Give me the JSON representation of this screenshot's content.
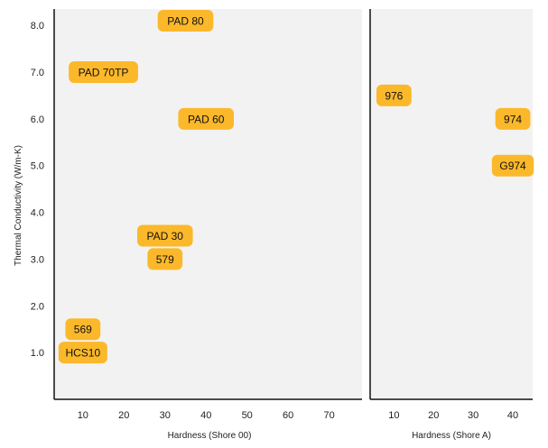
{
  "chart_data": [
    {
      "type": "scatter",
      "title": "",
      "xlabel": "Hardness (Shore 00)",
      "ylabel": "Thermal Conductivity (W/m-K)",
      "xlim": [
        3,
        78
      ],
      "ylim": [
        0,
        8.35
      ],
      "xticks": [
        "10",
        "20",
        "30",
        "40",
        "50",
        "60",
        "70"
      ],
      "yticks": [
        "1.0",
        "2.0",
        "3.0",
        "4.0",
        "5.0",
        "6.0",
        "7.0",
        "8.0"
      ],
      "grid": false,
      "points": [
        {
          "label": "PAD 80",
          "x": 35,
          "y": 8.1
        },
        {
          "label": "PAD 70TP",
          "x": 15,
          "y": 7.0
        },
        {
          "label": "PAD 60",
          "x": 40,
          "y": 6.0
        },
        {
          "label": "PAD 30",
          "x": 30,
          "y": 3.5
        },
        {
          "label": "579",
          "x": 30,
          "y": 3.0
        },
        {
          "label": "569",
          "x": 10,
          "y": 1.5
        },
        {
          "label": "HCS10",
          "x": 10,
          "y": 1.0
        }
      ]
    },
    {
      "type": "scatter",
      "title": "",
      "xlabel": "Hardness (Shore A)",
      "xlim": [
        4,
        45
      ],
      "ylim": [
        0,
        8.35
      ],
      "xticks": [
        "10",
        "20",
        "30",
        "40"
      ],
      "grid": false,
      "points": [
        {
          "label": "976",
          "x": 10,
          "y": 6.5
        },
        {
          "label": "974",
          "x": 40,
          "y": 6.0
        },
        {
          "label": "G974",
          "x": 40,
          "y": 5.0
        }
      ]
    }
  ],
  "colors": {
    "plot_background": "#f2f2f2",
    "marker_fill": "#fbb82a",
    "axis_line": "#111111"
  }
}
